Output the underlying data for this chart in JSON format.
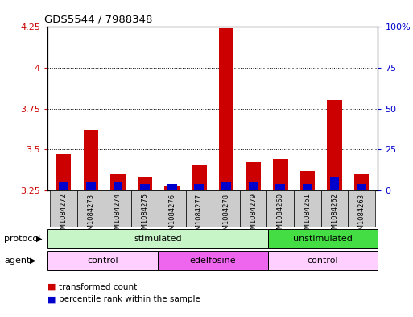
{
  "title": "GDS5544 / 7988348",
  "samples": [
    "GSM1084272",
    "GSM1084273",
    "GSM1084274",
    "GSM1084275",
    "GSM1084276",
    "GSM1084277",
    "GSM1084278",
    "GSM1084279",
    "GSM1084260",
    "GSM1084261",
    "GSM1084262",
    "GSM1084263"
  ],
  "transformed_count": [
    3.47,
    3.62,
    3.35,
    3.33,
    3.28,
    3.4,
    4.24,
    3.42,
    3.44,
    3.37,
    3.8,
    3.35
  ],
  "percentile_rank": [
    5,
    5,
    5,
    4,
    4,
    4,
    5,
    5,
    4,
    4,
    8,
    4
  ],
  "ylim_left": [
    3.25,
    4.25
  ],
  "ylim_right": [
    0,
    100
  ],
  "yticks_left": [
    3.25,
    3.5,
    3.75,
    4.0,
    4.25
  ],
  "yticks_right": [
    0,
    25,
    50,
    75,
    100
  ],
  "ytick_labels_left": [
    "3.25",
    "3.5",
    "3.75",
    "4",
    "4.25"
  ],
  "ytick_labels_right": [
    "0",
    "25",
    "50",
    "75",
    "100%"
  ],
  "protocol_groups": [
    {
      "label": "stimulated",
      "start": 0,
      "end": 7,
      "color": "#C8F5C8"
    },
    {
      "label": "unstimulated",
      "start": 8,
      "end": 11,
      "color": "#44DD44"
    }
  ],
  "agent_groups": [
    {
      "label": "control",
      "start": 0,
      "end": 3,
      "color": "#FFD0FF"
    },
    {
      "label": "edelfosine",
      "start": 4,
      "end": 7,
      "color": "#EE66EE"
    },
    {
      "label": "control",
      "start": 8,
      "end": 11,
      "color": "#FFD0FF"
    }
  ],
  "bar_color_red": "#CC0000",
  "bar_color_blue": "#0000CC",
  "bar_width": 0.55,
  "blue_bar_width": 0.35,
  "background_color": "#FFFFFF",
  "plot_bg_color": "#FFFFFF",
  "left_axis_color": "#CC0000",
  "right_axis_color": "#0000CC",
  "sample_box_color": "#CCCCCC",
  "legend_items": [
    "transformed count",
    "percentile rank within the sample"
  ],
  "legend_colors": [
    "#CC0000",
    "#0000CC"
  ],
  "protocol_label": "protocol",
  "agent_label": "agent"
}
